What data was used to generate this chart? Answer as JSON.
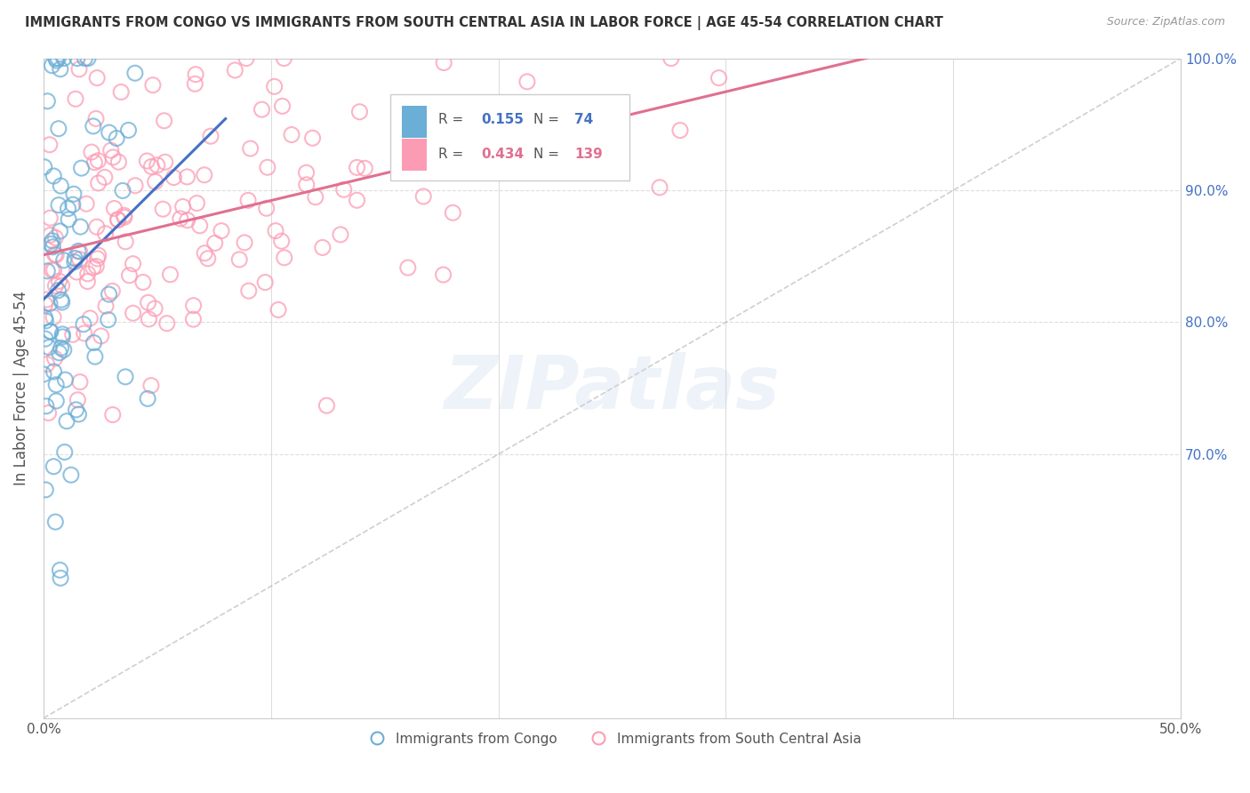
{
  "title": "IMMIGRANTS FROM CONGO VS IMMIGRANTS FROM SOUTH CENTRAL ASIA IN LABOR FORCE | AGE 45-54 CORRELATION CHART",
  "source": "Source: ZipAtlas.com",
  "ylabel_label": "In Labor Force | Age 45-54",
  "xlim": [
    0.0,
    50.0
  ],
  "ylim": [
    50.0,
    100.0
  ],
  "congo_R": 0.155,
  "congo_N": 74,
  "sca_R": 0.434,
  "sca_N": 139,
  "congo_color": "#6baed6",
  "congo_edge_color": "#5a9dc5",
  "sca_color": "#fc9cb4",
  "sca_edge_color": "#e88aa0",
  "congo_trend_color": "#4472c4",
  "sca_trend_color": "#e07090",
  "congo_label": "Immigrants from Congo",
  "sca_label": "Immigrants from South Central Asia",
  "watermark": "ZIPatlas",
  "background_color": "#ffffff",
  "grid_color": "#dddddd",
  "y_tick_color": "#4472c4",
  "x_tick_color": "#555555",
  "diag_color": "#bbbbbb",
  "legend_rect_color": "#cccccc",
  "title_color": "#333333",
  "source_color": "#999999",
  "ylabel_color": "#555555"
}
